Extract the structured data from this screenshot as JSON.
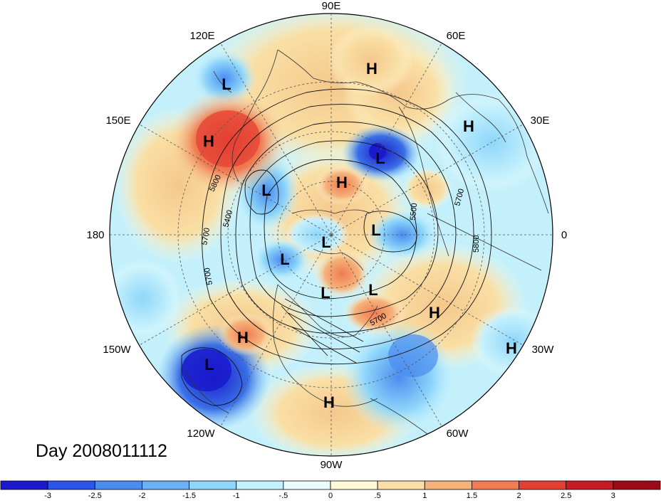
{
  "map": {
    "title": "Day 2008011112",
    "longitude_labels": [
      {
        "id": "lon-90e",
        "text": "90E"
      },
      {
        "id": "lon-120e",
        "text": "120E"
      },
      {
        "id": "lon-60e",
        "text": "60E"
      },
      {
        "id": "lon-150e",
        "text": "150E"
      },
      {
        "id": "lon-30e",
        "text": "30E"
      },
      {
        "id": "lon-180",
        "text": "180"
      },
      {
        "id": "lon-0",
        "text": "0"
      },
      {
        "id": "lon-150w",
        "text": "150W"
      },
      {
        "id": "lon-30w",
        "text": "30W"
      },
      {
        "id": "lon-120w",
        "text": "120W"
      },
      {
        "id": "lon-60w",
        "text": "60W"
      },
      {
        "id": "lon-90w",
        "text": "90W"
      }
    ],
    "pressure_centers": [
      "H",
      "L",
      "H",
      "L",
      "H",
      "L",
      "L",
      "L",
      "L",
      "L",
      "L",
      "H",
      "H",
      "L",
      "H",
      "H"
    ],
    "contour_labels": [
      "5800",
      "5400",
      "5700",
      "5700",
      "5700",
      "5500",
      "5800",
      "5700"
    ],
    "colors": {
      "strong_negative": "#2020d8",
      "negative": "#4e8cf0",
      "weak_negative": "#a6e6f8",
      "neutral": "#fffce0",
      "weak_positive": "#f7d9a0",
      "positive": "#f08040",
      "strong_positive": "#e02828"
    }
  },
  "colorbar": {
    "labels": [
      "-3",
      "-2.5",
      "-2",
      "-1.5",
      "-1",
      "-.5",
      "0",
      ".5",
      "1",
      "1.5",
      "2",
      "2.5",
      "3"
    ],
    "colors": [
      "#1a1acc",
      "#2a55e8",
      "#4a8cf0",
      "#6cb0f5",
      "#8ed6fa",
      "#c4f0fc",
      "#eafcfe",
      "#fff9d8",
      "#f9dfa5",
      "#f5b27a",
      "#f07c52",
      "#e43f33",
      "#c41c22",
      "#9c0a18"
    ]
  }
}
